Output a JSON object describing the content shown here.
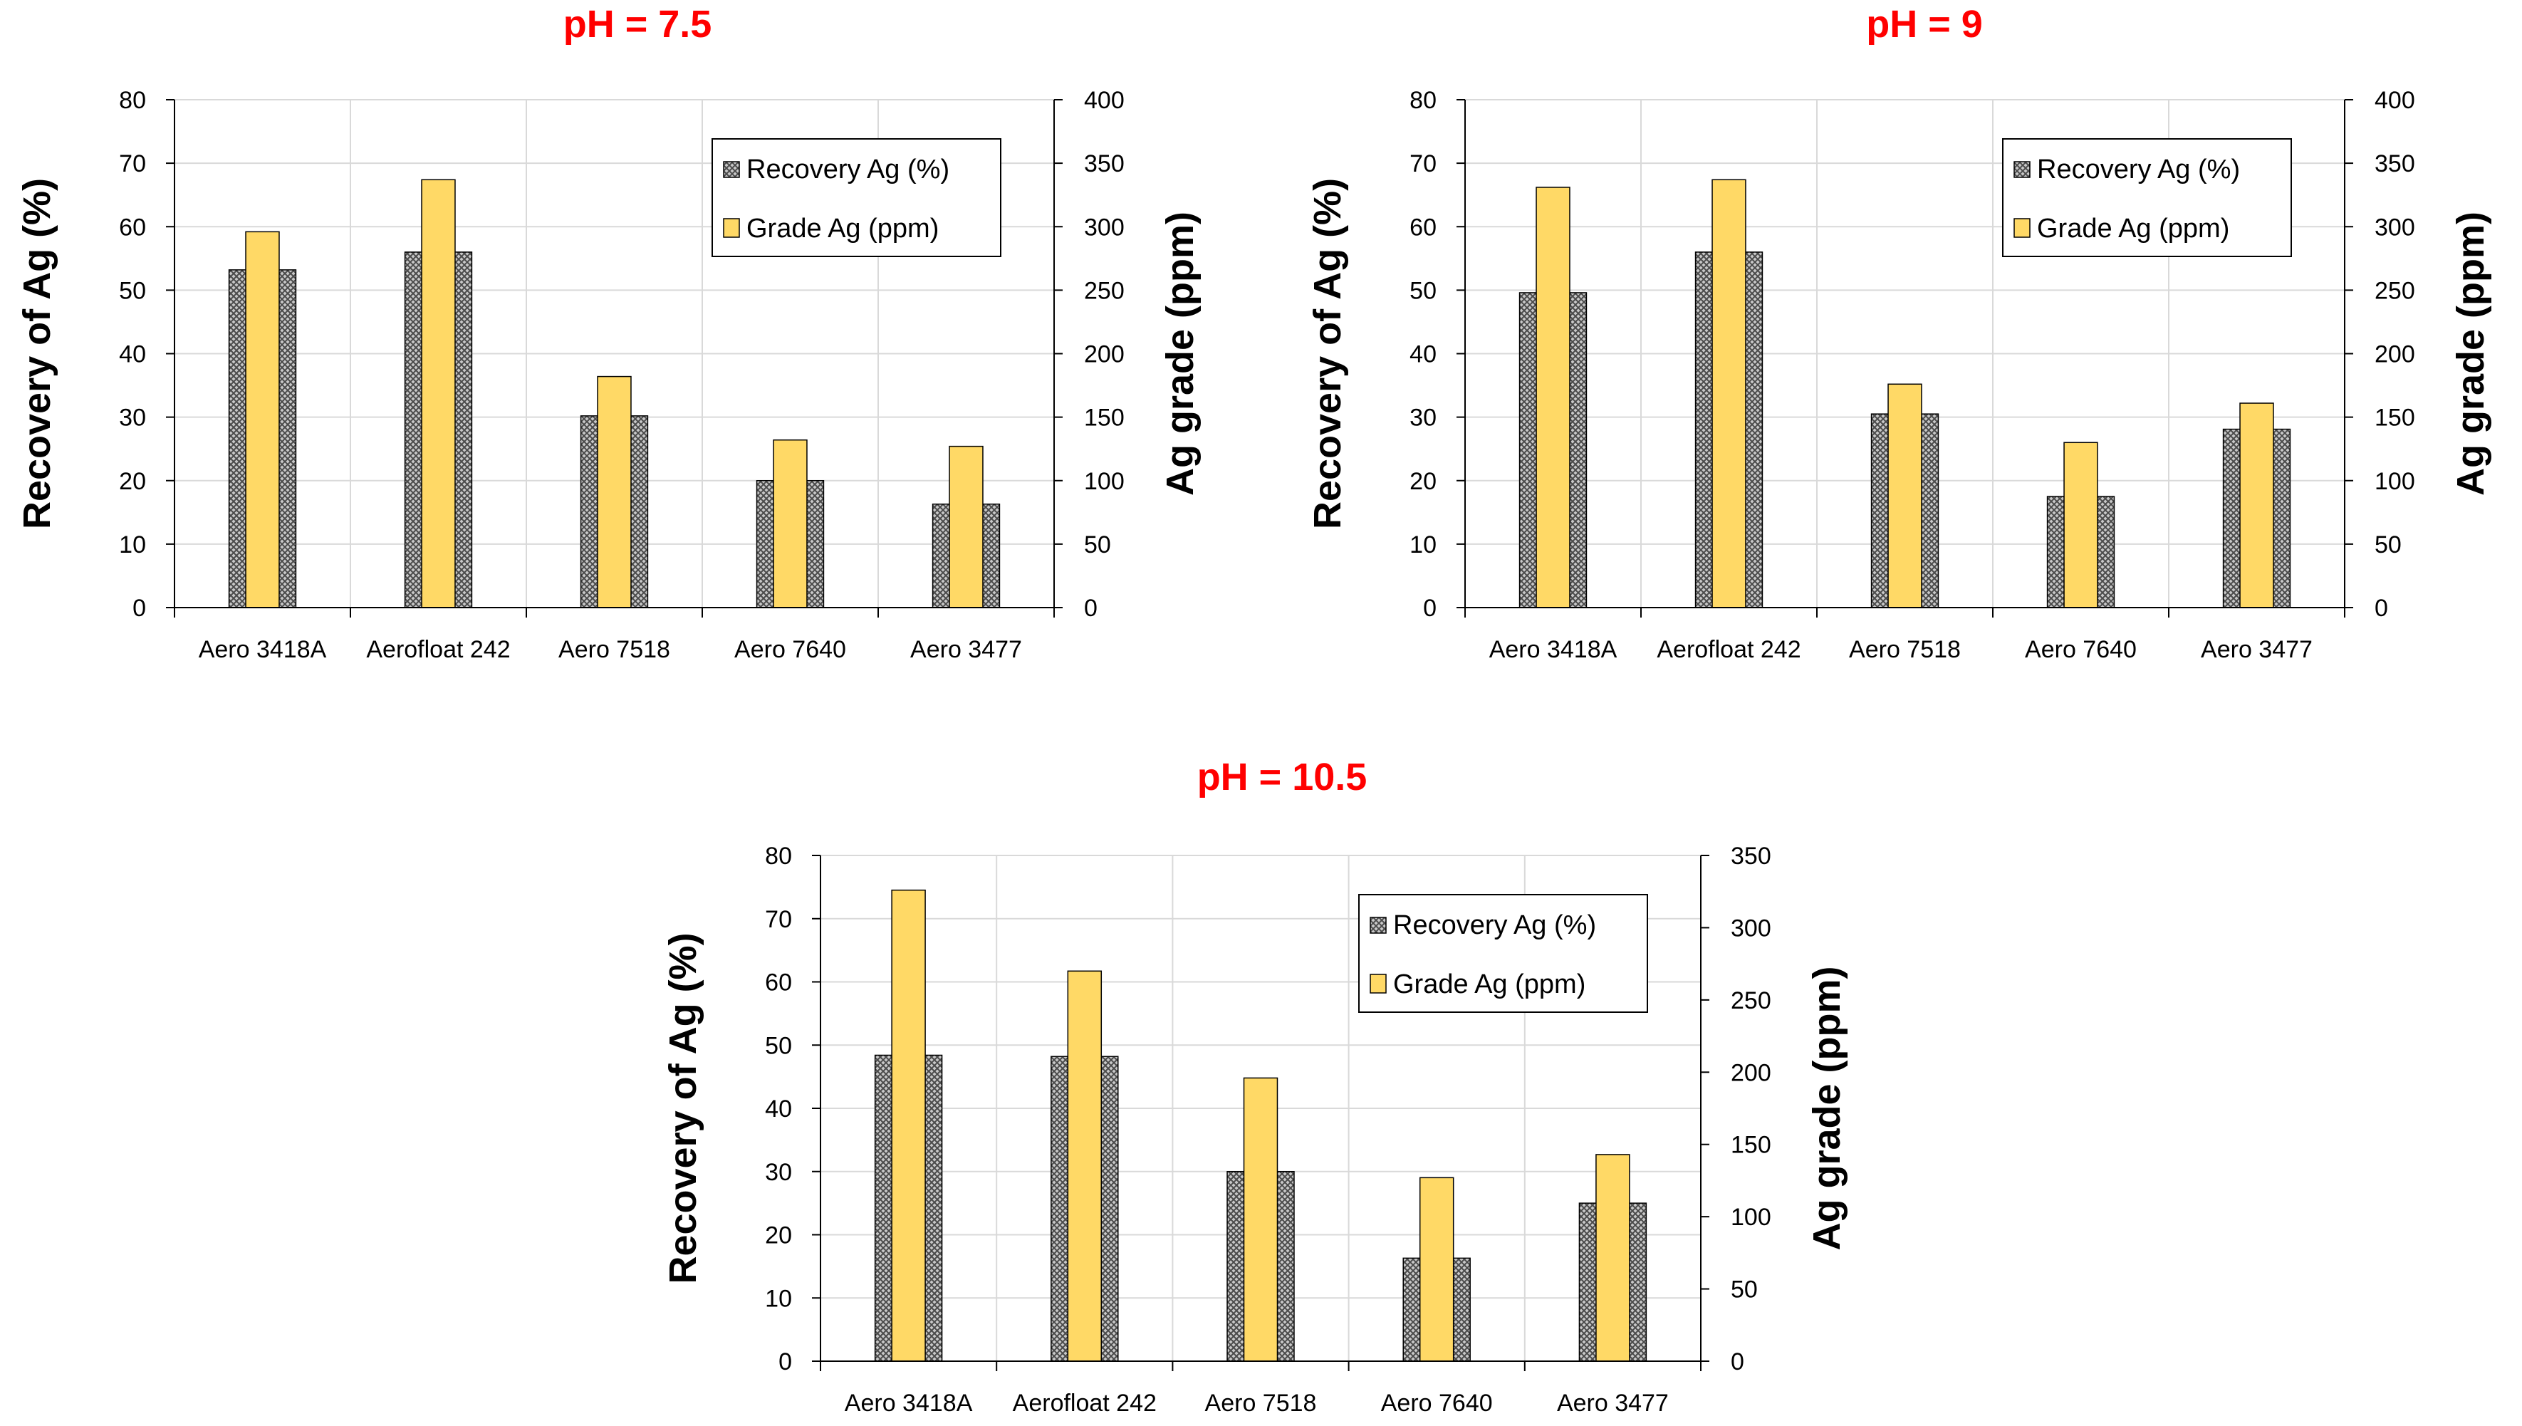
{
  "chart_data": [
    {
      "type": "bar",
      "title": "pH = 7.5",
      "categories": [
        "Aero 3418A",
        "Aerofloat 242",
        "Aero 7518",
        "Aero 7640",
        "Aero 3477"
      ],
      "series": [
        {
          "name": "Recovery Ag (%)",
          "axis": "left",
          "values": [
            53.2,
            56.0,
            30.2,
            20.0,
            16.3
          ]
        },
        {
          "name": "Grade Ag (ppm)",
          "axis": "right",
          "values": [
            296,
            337,
            182,
            132,
            127
          ]
        }
      ],
      "ylabel": "Recovery of Ag (%)",
      "y2label": "Ag grade (ppm)",
      "ylim": [
        0,
        80
      ],
      "yticks": [
        0,
        10,
        20,
        30,
        40,
        50,
        60,
        70,
        80
      ],
      "y2lim": [
        0,
        400
      ],
      "y2ticks": [
        0,
        50,
        100,
        150,
        200,
        250,
        300,
        350,
        400
      ],
      "legend": "top-right"
    },
    {
      "type": "bar",
      "title": "pH = 9",
      "categories": [
        "Aero 3418A",
        "Aerofloat 242",
        "Aero 7518",
        "Aero 7640",
        "Aero 3477"
      ],
      "series": [
        {
          "name": "Recovery Ag (%)",
          "axis": "left",
          "values": [
            49.6,
            56.0,
            30.5,
            17.5,
            28.1
          ]
        },
        {
          "name": "Grade Ag (ppm)",
          "axis": "right",
          "values": [
            331,
            337,
            176,
            130,
            161
          ]
        }
      ],
      "ylabel": "Recovery of Ag (%)",
      "y2label": "Ag grade (ppm)",
      "ylim": [
        0,
        80
      ],
      "yticks": [
        0,
        10,
        20,
        30,
        40,
        50,
        60,
        70,
        80
      ],
      "y2lim": [
        0,
        400
      ],
      "y2ticks": [
        0,
        50,
        100,
        150,
        200,
        250,
        300,
        350,
        400
      ],
      "legend": "top-right"
    },
    {
      "type": "bar",
      "title": "pH = 10.5",
      "categories": [
        "Aero 3418A",
        "Aerofloat 242",
        "Aero 7518",
        "Aero 7640",
        "Aero 3477"
      ],
      "series": [
        {
          "name": "Recovery Ag (%)",
          "axis": "left",
          "values": [
            48.4,
            48.2,
            30.0,
            16.3,
            25.0
          ]
        },
        {
          "name": "Grade Ag (ppm)",
          "axis": "right",
          "values": [
            326,
            270,
            196,
            127,
            143
          ]
        }
      ],
      "ylabel": "Recovery of Ag (%)",
      "y2label": "Ag grade (ppm)",
      "ylim": [
        0,
        80
      ],
      "yticks": [
        0,
        10,
        20,
        30,
        40,
        50,
        60,
        70,
        80
      ],
      "y2lim": [
        0,
        350
      ],
      "y2ticks": [
        0,
        50,
        100,
        150,
        200,
        250,
        300,
        350
      ],
      "legend": "top-right"
    }
  ],
  "colors": {
    "title": "#ff0000",
    "grade_fill": "#ffd966",
    "recovery_fill": "#c8c8c8",
    "recovery_hatch": "#4a4a4a",
    "grid": "#d9d9d9",
    "axis": "#000000"
  }
}
